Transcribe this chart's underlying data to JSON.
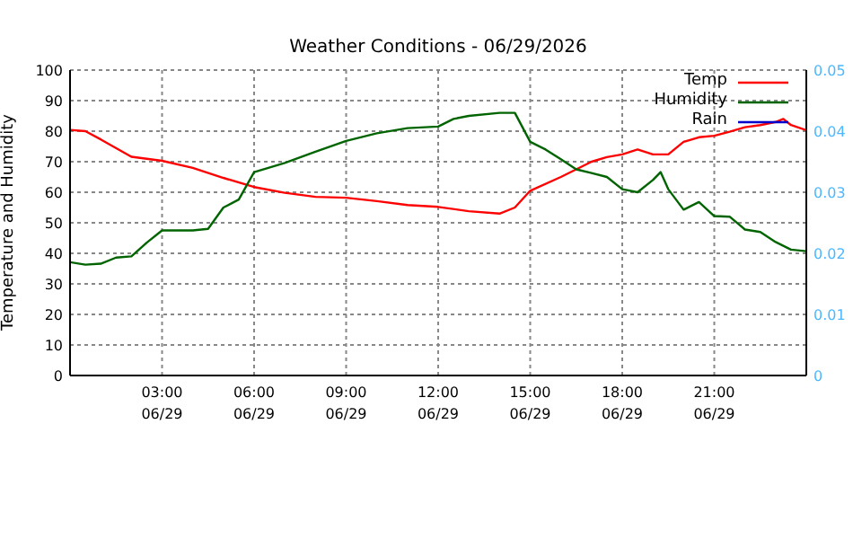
{
  "chart_data": {
    "type": "line",
    "title": "Weather Conditions - 06/29/2026",
    "ylabel": "Temperature and Humidity",
    "xlim": [
      "2026-06-29T00:00",
      "2026-06-30T00:00"
    ],
    "xticks": [
      {
        "value": "2026-06-29T03:00",
        "label": "03:00\n06/29"
      },
      {
        "value": "2026-06-29T06:00",
        "label": "06:00\n06/29"
      },
      {
        "value": "2026-06-29T09:00",
        "label": "09:00\n06/29"
      },
      {
        "value": "2026-06-29T12:00",
        "label": "12:00\n06/29"
      },
      {
        "value": "2026-06-29T15:00",
        "label": "15:00\n06/29"
      },
      {
        "value": "2026-06-29T18:00",
        "label": "18:00\n06/29"
      },
      {
        "value": "2026-06-29T21:00",
        "label": "21:00\n06/29"
      }
    ],
    "ylim": [
      0,
      100
    ],
    "yticks": [
      0,
      10,
      20,
      30,
      40,
      50,
      60,
      70,
      80,
      90,
      100
    ],
    "y2lim": [
      0,
      0.05
    ],
    "y2ticks": [
      0,
      0.01,
      0.02,
      0.03,
      0.04,
      0.05
    ],
    "grid": true,
    "legend": "top right",
    "marker": "none",
    "line_style": "solid",
    "series": [
      {
        "name": "Temp",
        "color": "#ff0000",
        "x": [
          "2026-06-29T00:00",
          "2026-06-29T00:30",
          "2026-06-29T01:00",
          "2026-06-29T02:00",
          "2026-06-29T03:00",
          "2026-06-29T04:00",
          "2026-06-29T05:00",
          "2026-06-29T06:00",
          "2026-06-29T07:00",
          "2026-06-29T08:00",
          "2026-06-29T09:00",
          "2026-06-29T10:00",
          "2026-06-29T11:00",
          "2026-06-29T12:00",
          "2026-06-29T13:00",
          "2026-06-29T14:00",
          "2026-06-29T14:30",
          "2026-06-29T15:00",
          "2026-06-29T16:00",
          "2026-06-29T17:00",
          "2026-06-29T17:30",
          "2026-06-29T18:00",
          "2026-06-29T18:30",
          "2026-06-29T19:00",
          "2026-06-29T19:30",
          "2026-06-29T20:00",
          "2026-06-29T20:30",
          "2026-06-29T21:00",
          "2026-06-29T21:30",
          "2026-06-29T22:00",
          "2026-06-29T22:30",
          "2026-06-29T23:00",
          "2026-06-29T23:15",
          "2026-06-29T23:30",
          "2026-06-30T00:00"
        ],
        "values": [
          80.4,
          80,
          77.3,
          71.6,
          70.3,
          68,
          64.7,
          61.7,
          59.8,
          58.5,
          58.2,
          57.1,
          55.8,
          55.2,
          53.8,
          53,
          55,
          60.5,
          65,
          70,
          71.5,
          72.4,
          74,
          72.4,
          72.4,
          76.5,
          78,
          78.5,
          79.8,
          81.3,
          82,
          83,
          84,
          82,
          80.3
        ]
      },
      {
        "name": "Humidity",
        "color": "#006400",
        "x": [
          "2026-06-29T00:00",
          "2026-06-29T00:30",
          "2026-06-29T01:00",
          "2026-06-29T01:30",
          "2026-06-29T02:00",
          "2026-06-29T02:30",
          "2026-06-29T03:00",
          "2026-06-29T04:00",
          "2026-06-29T04:30",
          "2026-06-29T05:00",
          "2026-06-29T05:30",
          "2026-06-29T06:00",
          "2026-06-29T07:00",
          "2026-06-29T08:00",
          "2026-06-29T09:00",
          "2026-06-29T10:00",
          "2026-06-29T11:00",
          "2026-06-29T12:00",
          "2026-06-29T12:30",
          "2026-06-29T13:00",
          "2026-06-29T14:00",
          "2026-06-29T14:30",
          "2026-06-29T15:00",
          "2026-06-29T15:30",
          "2026-06-29T16:00",
          "2026-06-29T16:30",
          "2026-06-29T17:00",
          "2026-06-29T17:30",
          "2026-06-29T18:00",
          "2026-06-29T18:30",
          "2026-06-29T19:00",
          "2026-06-29T19:15",
          "2026-06-29T19:30",
          "2026-06-29T20:00",
          "2026-06-29T20:30",
          "2026-06-29T21:00",
          "2026-06-29T21:30",
          "2026-06-29T22:00",
          "2026-06-29T22:30",
          "2026-06-29T23:00",
          "2026-06-29T23:30",
          "2026-06-30T00:00"
        ],
        "values": [
          37.1,
          36.3,
          36.6,
          38.6,
          39,
          43.5,
          47.5,
          47.5,
          48,
          55,
          57.6,
          66.6,
          69.6,
          73.3,
          76.8,
          79.3,
          81,
          81.5,
          84,
          85,
          86,
          86,
          76.5,
          74,
          70.8,
          67.5,
          66.3,
          65,
          61,
          60,
          64,
          66.6,
          61,
          54.3,
          56.8,
          52.2,
          52,
          47.8,
          47,
          43.7,
          41.2,
          40.7
        ]
      },
      {
        "name": "Rain",
        "color": "#0000cc",
        "axis": "y2"
      }
    ]
  }
}
